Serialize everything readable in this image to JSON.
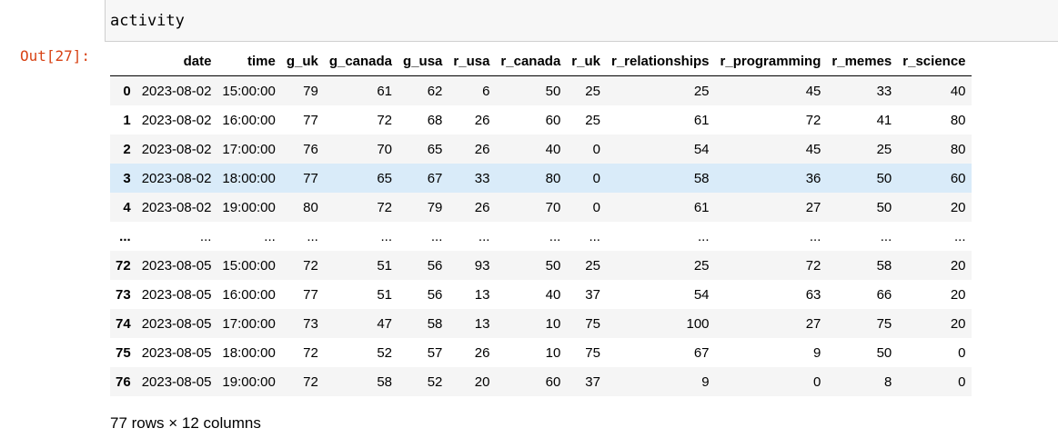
{
  "input": {
    "code": "activity"
  },
  "output": {
    "prompt": "Out[27]:"
  },
  "table": {
    "columns": [
      "date",
      "time",
      "g_uk",
      "g_canada",
      "g_usa",
      "r_usa",
      "r_canada",
      "r_uk",
      "r_relationships",
      "r_programming",
      "r_memes",
      "r_science"
    ],
    "rows": [
      [
        "0",
        "2023-08-02",
        "15:00:00",
        "79",
        "61",
        "62",
        "6",
        "50",
        "25",
        "25",
        "45",
        "33",
        "40"
      ],
      [
        "1",
        "2023-08-02",
        "16:00:00",
        "77",
        "72",
        "68",
        "26",
        "60",
        "25",
        "61",
        "72",
        "41",
        "80"
      ],
      [
        "2",
        "2023-08-02",
        "17:00:00",
        "76",
        "70",
        "65",
        "26",
        "40",
        "0",
        "54",
        "45",
        "25",
        "80"
      ],
      [
        "3",
        "2023-08-02",
        "18:00:00",
        "77",
        "65",
        "67",
        "33",
        "80",
        "0",
        "58",
        "36",
        "50",
        "60"
      ],
      [
        "4",
        "2023-08-02",
        "19:00:00",
        "80",
        "72",
        "79",
        "26",
        "70",
        "0",
        "61",
        "27",
        "50",
        "20"
      ],
      [
        "...",
        "...",
        "...",
        "...",
        "...",
        "...",
        "...",
        "...",
        "...",
        "...",
        "...",
        "...",
        "..."
      ],
      [
        "72",
        "2023-08-05",
        "15:00:00",
        "72",
        "51",
        "56",
        "93",
        "50",
        "25",
        "25",
        "72",
        "58",
        "20"
      ],
      [
        "73",
        "2023-08-05",
        "16:00:00",
        "77",
        "51",
        "56",
        "13",
        "40",
        "37",
        "54",
        "63",
        "66",
        "20"
      ],
      [
        "74",
        "2023-08-05",
        "17:00:00",
        "73",
        "47",
        "58",
        "13",
        "10",
        "75",
        "100",
        "27",
        "75",
        "20"
      ],
      [
        "75",
        "2023-08-05",
        "18:00:00",
        "72",
        "52",
        "57",
        "26",
        "10",
        "75",
        "67",
        "9",
        "50",
        "0"
      ],
      [
        "76",
        "2023-08-05",
        "19:00:00",
        "72",
        "58",
        "52",
        "20",
        "60",
        "37",
        "9",
        "0",
        "8",
        "0"
      ]
    ]
  },
  "summary": "77 rows × 12 columns"
}
